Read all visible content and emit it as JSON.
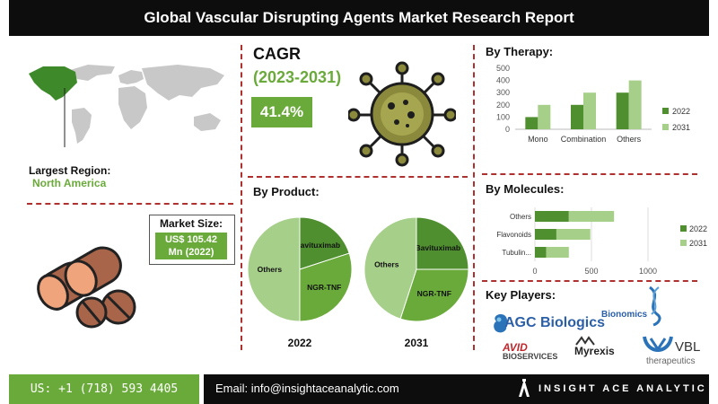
{
  "header": {
    "title": "Global Vascular Disrupting Agents Market Research Report"
  },
  "region": {
    "label": "Largest Region:",
    "value": "North America"
  },
  "market_size": {
    "label": "Market Size:",
    "value_line1": "US$ 105.42",
    "value_line2": "Mn (2022)"
  },
  "cagr": {
    "title": "CAGR",
    "period": "(2023-2031)",
    "value": "41.4%"
  },
  "sections": {
    "therapy": "By Therapy:",
    "molecules": "By Molecules:",
    "product": "By Product:",
    "players": "Key Players:"
  },
  "key_players": [
    {
      "name": "AGC Biologics"
    },
    {
      "name": "Bionomics"
    },
    {
      "name": "AVID BIOSERVICES",
      "line1": "AVID",
      "line2": "BIOSERVICES"
    },
    {
      "name": "Myrexis"
    },
    {
      "name": "VBL therapeutics",
      "line1": "VBL",
      "line2": "therapeutics"
    }
  ],
  "footer": {
    "phone": "US: +1 (718) 593 4405",
    "email": "Email: info@insightaceanalytic.com",
    "brand": "INSIGHT ACE ANALYTIC"
  },
  "colors": {
    "dark_green": "#4f8f2f",
    "light_green": "#a6cf8a",
    "mid_green": "#6aaa3a",
    "accent_red": "#b03030"
  },
  "chart_data": [
    {
      "id": "therapy",
      "type": "bar",
      "title": "By Therapy:",
      "categories": [
        "Mono",
        "Combination",
        "Others"
      ],
      "series": [
        {
          "name": "2022",
          "values": [
            100,
            200,
            300
          ]
        },
        {
          "name": "2031",
          "values": [
            200,
            300,
            400
          ]
        }
      ],
      "ylim": [
        0,
        500
      ],
      "yticks": [
        "0",
        "100",
        "200",
        "300",
        "400",
        "500"
      ],
      "legend": "right",
      "grid": false
    },
    {
      "id": "molecules",
      "type": "bar",
      "orientation": "horizontal",
      "title": "By Molecules:",
      "categories": [
        "Tubulin...",
        "Flavonoids",
        "Others"
      ],
      "series": [
        {
          "name": "2022",
          "values": [
            100,
            190,
            300
          ]
        },
        {
          "name": "2031",
          "values": [
            200,
            300,
            400
          ]
        }
      ],
      "stacked": true,
      "xlim": [
        0,
        1000
      ],
      "xticks": [
        "0",
        "500",
        "1000"
      ],
      "legend": "right",
      "grid": true
    },
    {
      "id": "product_2022",
      "type": "pie",
      "title": "2022",
      "slices": [
        {
          "label": "Bavituximab",
          "value": 20
        },
        {
          "label": "NGR-TNF",
          "value": 30
        },
        {
          "label": "Others",
          "value": 50
        }
      ]
    },
    {
      "id": "product_2031",
      "type": "pie",
      "title": "2031",
      "slices": [
        {
          "label": "Bavituximab",
          "value": 25
        },
        {
          "label": "NGR-TNF",
          "value": 30
        },
        {
          "label": "Others",
          "value": 45
        }
      ]
    }
  ]
}
